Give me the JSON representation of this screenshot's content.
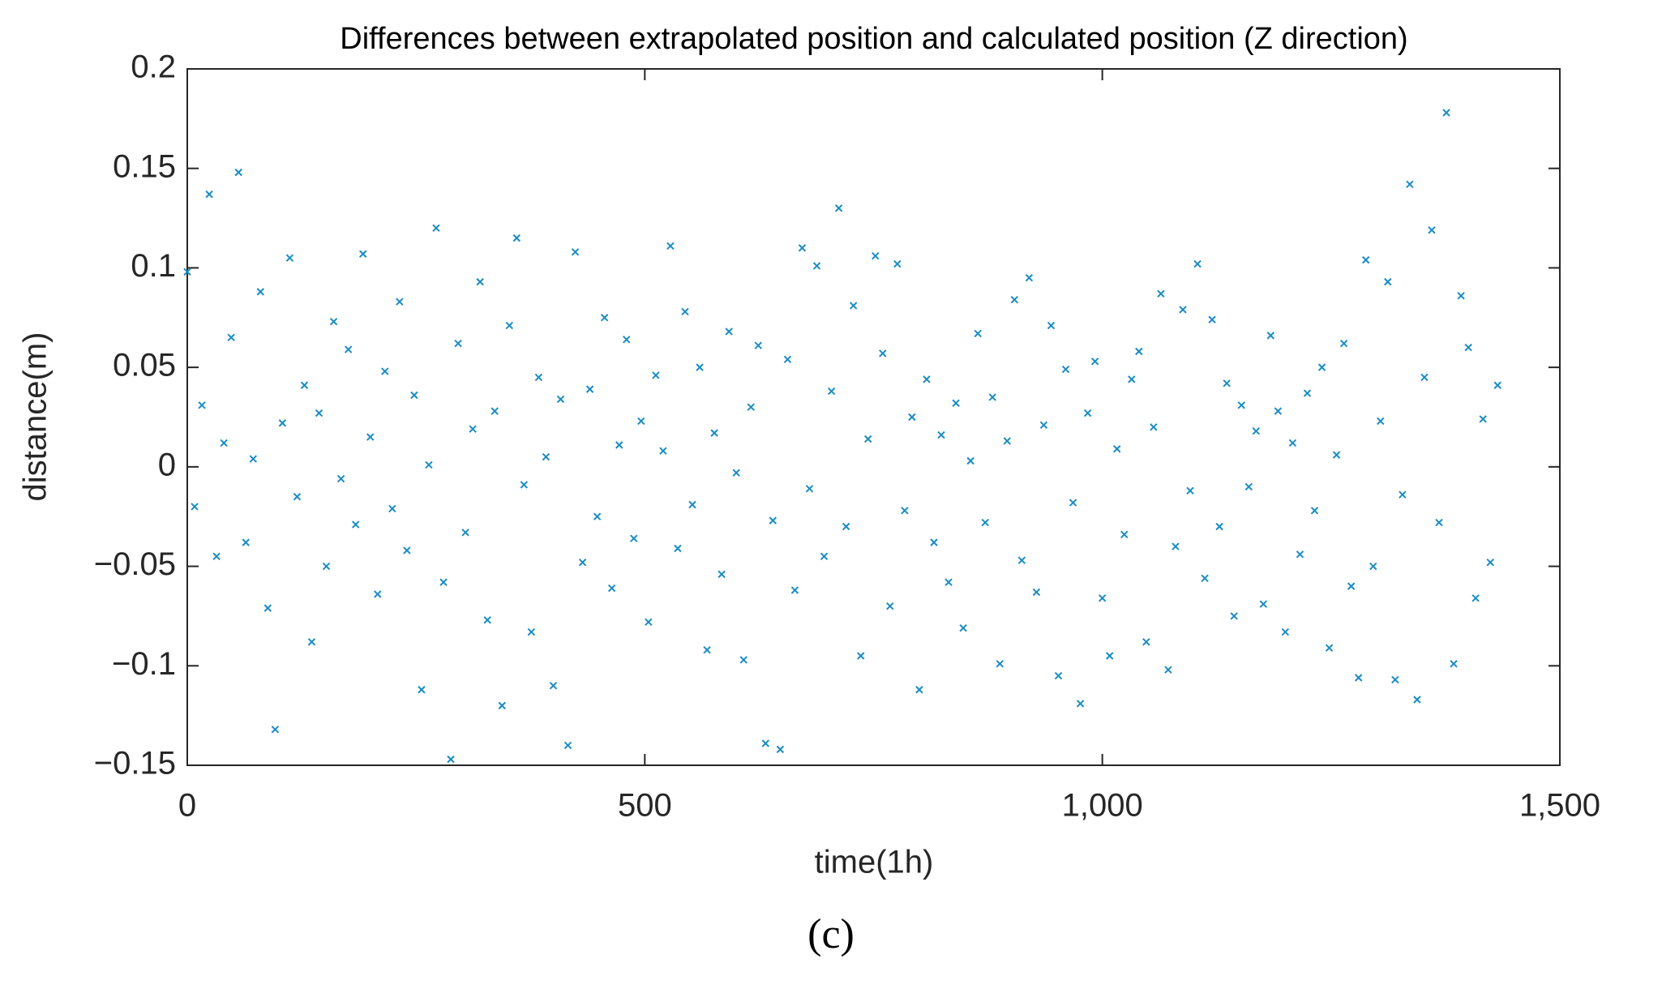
{
  "chart_data": {
    "type": "scatter",
    "title": "Differences between extrapolated position and calculated position (Z direction)",
    "x_label": "time(1h)",
    "y_label": "distance(m)",
    "caption": "(c)",
    "color": "#1a8cc4",
    "marker": "x",
    "xlim": [
      0,
      1500
    ],
    "xticks": [
      0,
      500,
      {
        "value": 1000,
        "label": "1,000"
      },
      {
        "value": 1500,
        "label": "1,500"
      }
    ],
    "ylim": [
      -0.15,
      0.2
    ],
    "yticks": [
      {
        "value": -0.15,
        "label": "−0.15"
      },
      {
        "value": -0.1,
        "label": "−0.1"
      },
      {
        "value": -0.05,
        "label": "−0.05"
      },
      0,
      0.05,
      0.1,
      0.15,
      0.2
    ],
    "x": [
      0,
      8,
      16,
      24,
      32,
      40,
      48,
      56,
      64,
      72,
      80,
      88,
      96,
      104,
      112,
      120,
      128,
      136,
      144,
      152,
      160,
      168,
      176,
      184,
      192,
      200,
      208,
      216,
      224,
      232,
      240,
      248,
      256,
      264,
      272,
      280,
      288,
      296,
      304,
      312,
      320,
      328,
      336,
      344,
      352,
      360,
      368,
      376,
      384,
      392,
      400,
      408,
      416,
      424,
      432,
      440,
      448,
      456,
      464,
      472,
      480,
      488,
      496,
      504,
      512,
      520,
      528,
      536,
      544,
      552,
      560,
      568,
      576,
      584,
      592,
      600,
      608,
      616,
      624,
      632,
      640,
      648,
      656,
      664,
      672,
      680,
      688,
      696,
      704,
      712,
      720,
      728,
      736,
      744,
      752,
      760,
      768,
      776,
      784,
      792,
      800,
      808,
      816,
      824,
      832,
      840,
      848,
      856,
      864,
      872,
      880,
      888,
      896,
      904,
      912,
      920,
      928,
      936,
      944,
      952,
      960,
      968,
      976,
      984,
      992,
      1000,
      1008,
      1016,
      1024,
      1032,
      1040,
      1048,
      1056,
      1064,
      1072,
      1080,
      1088,
      1096,
      1104,
      1112,
      1120,
      1128,
      1136,
      1144,
      1152,
      1160,
      1168,
      1176,
      1184,
      1192,
      1200,
      1208,
      1216,
      1224,
      1232,
      1240,
      1248,
      1256,
      1264,
      1272,
      1280,
      1288,
      1296,
      1304,
      1312,
      1320,
      1328,
      1336,
      1344,
      1352,
      1360,
      1368,
      1376,
      1384,
      1392,
      1400,
      1408,
      1416,
      1424,
      1432
    ],
    "values": [
      0.098,
      -0.02,
      0.031,
      0.137,
      -0.045,
      0.012,
      0.065,
      0.148,
      -0.038,
      0.004,
      0.088,
      -0.071,
      -0.132,
      0.022,
      0.105,
      -0.015,
      0.041,
      -0.088,
      0.027,
      -0.05,
      0.073,
      -0.006,
      0.059,
      -0.029,
      0.107,
      0.015,
      -0.064,
      0.048,
      -0.021,
      0.083,
      -0.042,
      0.036,
      -0.112,
      0.001,
      0.12,
      -0.058,
      -0.147,
      0.062,
      -0.033,
      0.019,
      0.093,
      -0.077,
      0.028,
      -0.12,
      0.071,
      0.115,
      -0.009,
      -0.083,
      0.045,
      0.005,
      -0.11,
      0.034,
      -0.14,
      0.108,
      -0.048,
      0.039,
      -0.025,
      0.075,
      -0.061,
      0.011,
      0.064,
      -0.036,
      0.023,
      -0.078,
      0.046,
      0.008,
      0.111,
      -0.041,
      0.078,
      -0.019,
      0.05,
      -0.092,
      0.017,
      -0.054,
      0.068,
      -0.003,
      -0.097,
      0.03,
      0.061,
      -0.139,
      -0.027,
      -0.142,
      0.054,
      -0.062,
      0.11,
      -0.011,
      0.101,
      -0.045,
      0.038,
      0.13,
      -0.03,
      0.081,
      -0.095,
      0.014,
      0.106,
      0.057,
      -0.07,
      0.102,
      -0.022,
      0.025,
      -0.112,
      0.044,
      -0.038,
      0.016,
      -0.058,
      0.032,
      -0.081,
      0.003,
      0.067,
      -0.028,
      0.035,
      -0.099,
      0.013,
      0.084,
      -0.047,
      0.095,
      -0.063,
      0.021,
      0.071,
      -0.105,
      0.049,
      -0.018,
      -0.119,
      0.027,
      0.053,
      -0.066,
      -0.095,
      0.009,
      -0.034,
      0.044,
      0.058,
      -0.088,
      0.02,
      0.087,
      -0.102,
      -0.04,
      0.079,
      -0.012,
      0.102,
      -0.056,
      0.074,
      -0.03,
      0.042,
      -0.075,
      0.031,
      -0.01,
      0.018,
      -0.069,
      0.066,
      0.028,
      -0.083,
      0.012,
      -0.044,
      0.037,
      -0.022,
      0.05,
      -0.091,
      0.006,
      0.062,
      -0.06,
      -0.106,
      0.104,
      -0.05,
      0.023,
      0.093,
      -0.107,
      -0.014,
      0.142,
      -0.117,
      0.045,
      0.119,
      -0.028,
      0.178,
      -0.099,
      0.086,
      0.06,
      -0.066,
      0.024,
      -0.048,
      0.041
    ]
  }
}
